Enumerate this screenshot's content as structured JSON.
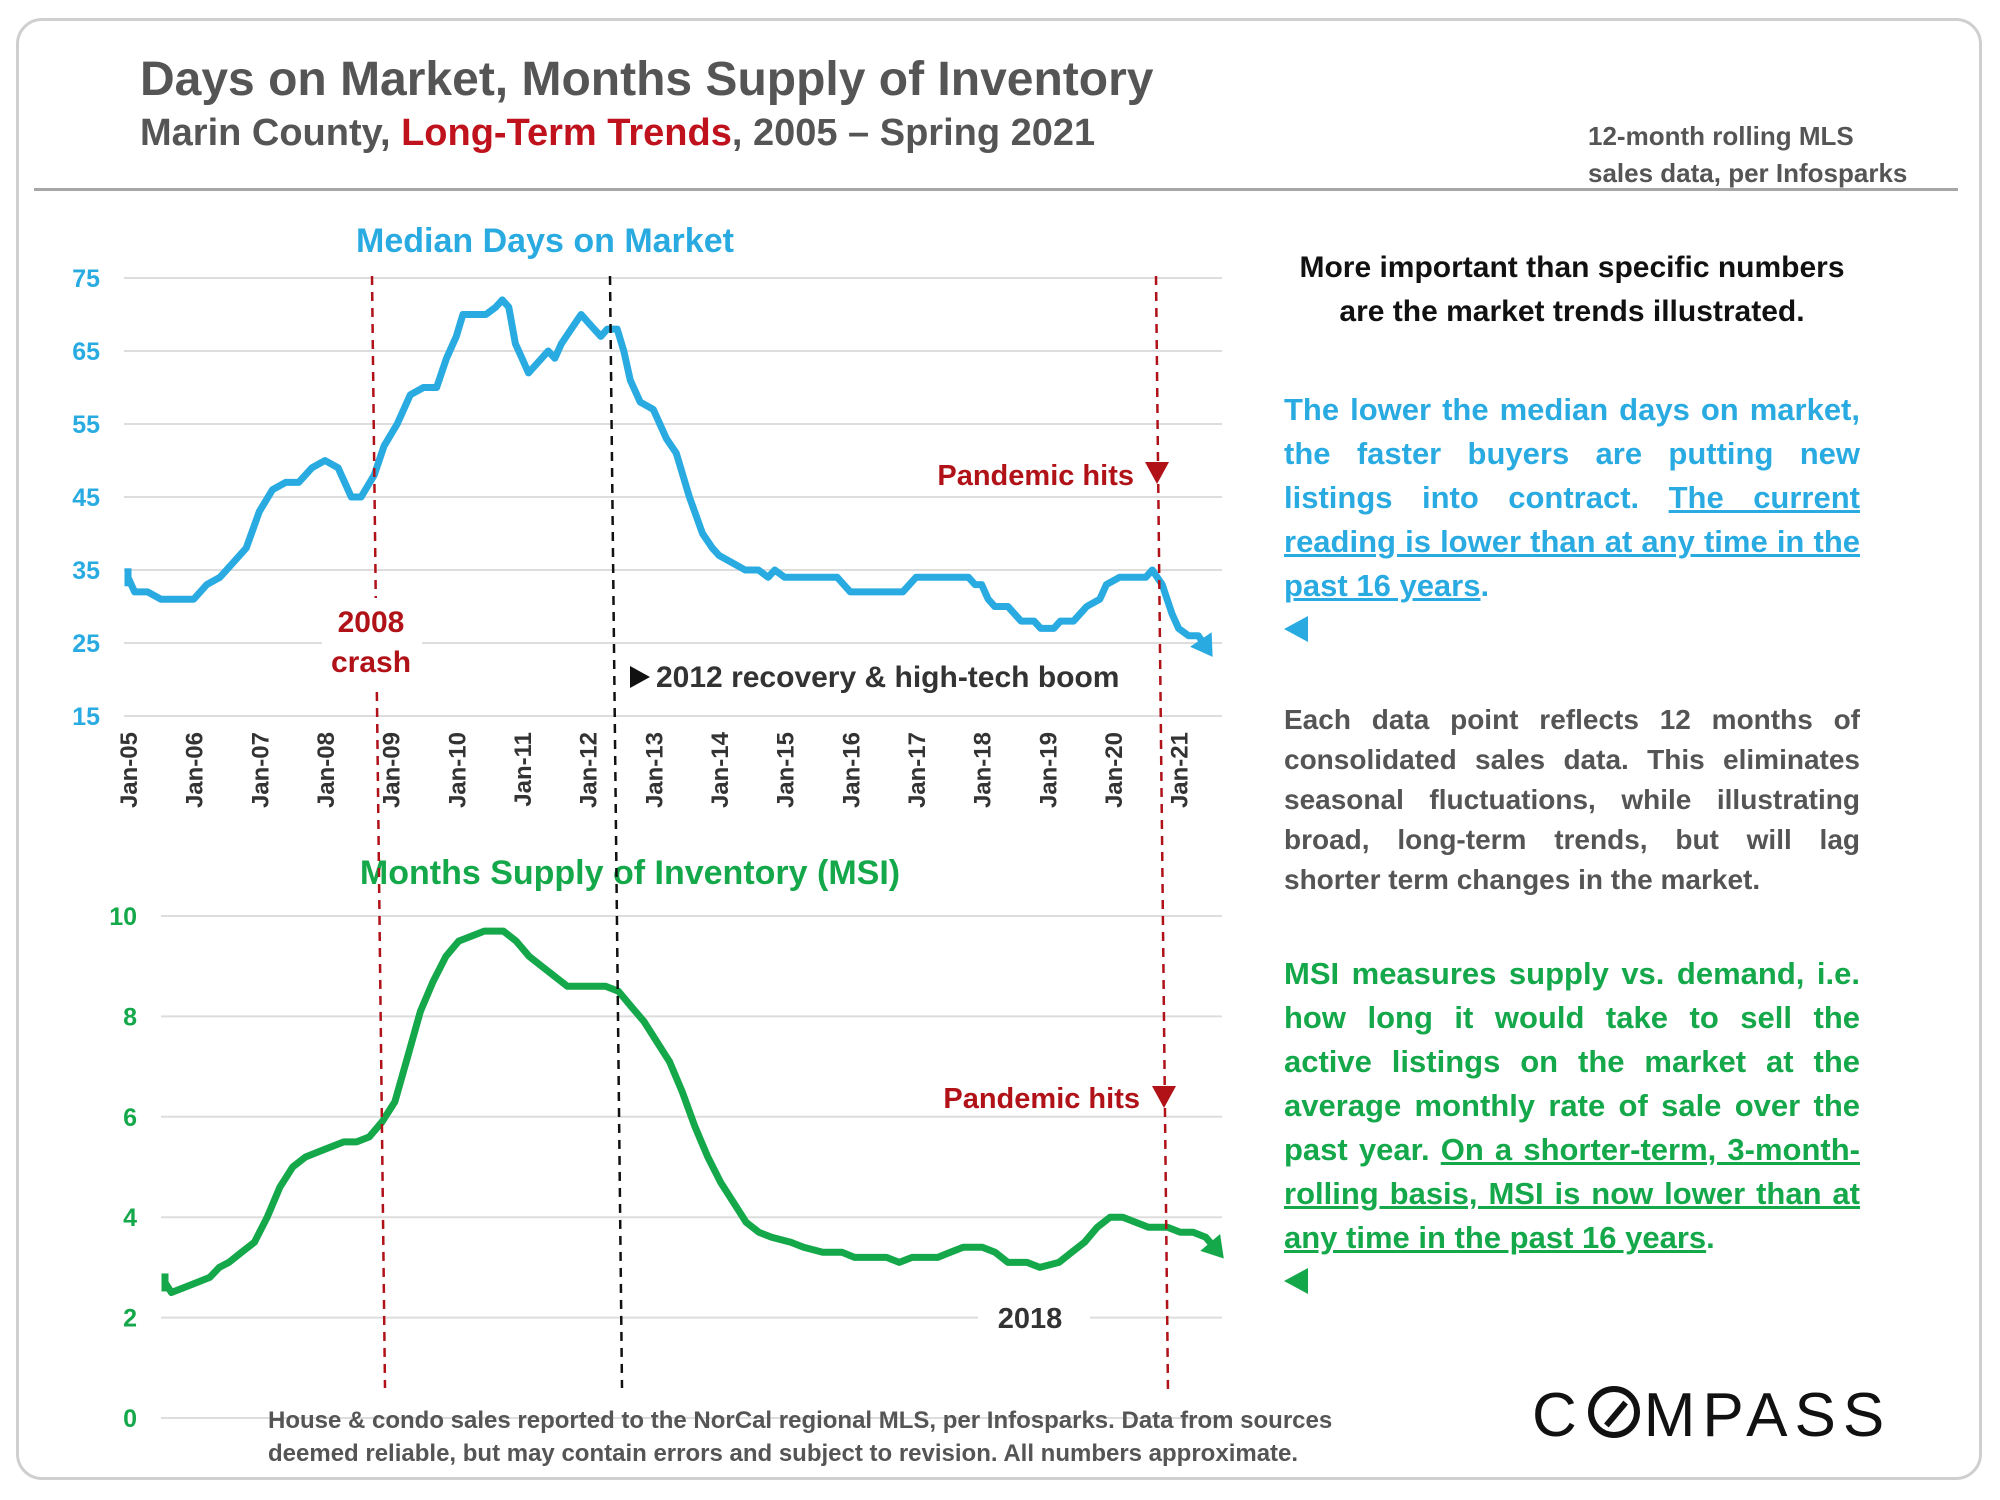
{
  "header": {
    "title": "Days on Market, Months Supply of Inventory",
    "subtitle_a": "Marin County, ",
    "subtitle_b": "Long-Term Trends",
    "subtitle_c": ", 2005 – Spring 2021",
    "source_line1": "12-month rolling MLS",
    "source_line2": "sales data, per Infosparks"
  },
  "colors": {
    "dom": "#29abe2",
    "msi": "#14a84a",
    "annotation_red": "#b01218",
    "annotation_black": "#111111",
    "grid": "#dddddd"
  },
  "panel": {
    "p1": "More important than specific numbers are the market trends illustrated.",
    "p2_plain": "The lower the median days on market, the faster buyers are putting new listings into contract. ",
    "p2_underlined": "The current reading is lower than at any time in the past 16 years",
    "p2_end": ".",
    "p3": "Each data point reflects 12 months of consolidated sales data. This eliminates seasonal fluctuations, while illustrating broad, long-term trends, but will lag shorter term changes in the market.",
    "p4_plain": "MSI measures supply vs. demand, i.e. how long it would take to sell the active listings on the market at the average monthly rate of sale over the past year. ",
    "p4_underlined": "On a shorter-term, 3-month-rolling basis, MSI is now lower than at any time in the past 16 years",
    "p4_end": "."
  },
  "footnote": {
    "line1": "House & condo sales reported to the NorCal regional MLS, per Infosparks. Data from sources",
    "line2": "deemed reliable, but may contain errors and subject to revision. All numbers approximate."
  },
  "logo": {
    "before": "C",
    "after": "MPASS"
  },
  "chart_data": [
    {
      "type": "line",
      "title": "Median Days on Market",
      "x_tick_labels": [
        "Jan-05",
        "Jan-06",
        "Jan-07",
        "Jan-08",
        "Jan-09",
        "Jan-10",
        "Jan-11",
        "Jan-12",
        "Jan-13",
        "Jan-14",
        "Jan-15",
        "Jan-16",
        "Jan-17",
        "Jan-18",
        "Jan-19",
        "Jan-20",
        "Jan-21"
      ],
      "ylim": [
        15,
        75
      ],
      "yticks": [
        15,
        25,
        35,
        45,
        55,
        65,
        75
      ],
      "grid": true,
      "series": [
        {
          "points": [
            [
              2005.0,
              34
            ],
            [
              2005.1,
              32
            ],
            [
              2005.3,
              32
            ],
            [
              2005.5,
              31
            ],
            [
              2005.8,
              31
            ],
            [
              2006.0,
              31
            ],
            [
              2006.2,
              33
            ],
            [
              2006.4,
              34
            ],
            [
              2006.6,
              36
            ],
            [
              2006.8,
              38
            ],
            [
              2007.0,
              43
            ],
            [
              2007.2,
              46
            ],
            [
              2007.4,
              47
            ],
            [
              2007.6,
              47
            ],
            [
              2007.8,
              49
            ],
            [
              2008.0,
              50
            ],
            [
              2008.2,
              49
            ],
            [
              2008.4,
              45
            ],
            [
              2008.55,
              45
            ],
            [
              2008.75,
              48
            ],
            [
              2008.9,
              52
            ],
            [
              2009.1,
              55
            ],
            [
              2009.3,
              59
            ],
            [
              2009.5,
              60
            ],
            [
              2009.7,
              60
            ],
            [
              2009.85,
              64
            ],
            [
              2010.0,
              67
            ],
            [
              2010.1,
              70
            ],
            [
              2010.3,
              70
            ],
            [
              2010.45,
              70
            ],
            [
              2010.6,
              71
            ],
            [
              2010.7,
              72
            ],
            [
              2010.8,
              71
            ],
            [
              2010.9,
              66
            ],
            [
              2011.0,
              64
            ],
            [
              2011.1,
              62
            ],
            [
              2011.3,
              64
            ],
            [
              2011.4,
              65
            ],
            [
              2011.5,
              64
            ],
            [
              2011.6,
              66
            ],
            [
              2011.75,
              68
            ],
            [
              2011.9,
              70
            ],
            [
              2012.0,
              69
            ],
            [
              2012.1,
              68
            ],
            [
              2012.2,
              67
            ],
            [
              2012.3,
              68
            ],
            [
              2012.45,
              68
            ],
            [
              2012.55,
              65
            ],
            [
              2012.65,
              61
            ],
            [
              2012.8,
              58
            ],
            [
              2013.0,
              57
            ],
            [
              2013.2,
              53
            ],
            [
              2013.35,
              51
            ],
            [
              2013.55,
              45
            ],
            [
              2013.75,
              40
            ],
            [
              2013.9,
              38
            ],
            [
              2014.0,
              37
            ],
            [
              2014.2,
              36
            ],
            [
              2014.4,
              35
            ],
            [
              2014.6,
              35
            ],
            [
              2014.75,
              34
            ],
            [
              2014.85,
              35
            ],
            [
              2015.0,
              34
            ],
            [
              2015.3,
              34
            ],
            [
              2015.6,
              34
            ],
            [
              2015.8,
              34
            ],
            [
              2016.0,
              32
            ],
            [
              2016.3,
              32
            ],
            [
              2016.6,
              32
            ],
            [
              2016.8,
              32
            ],
            [
              2016.9,
              33
            ],
            [
              2017.0,
              34
            ],
            [
              2017.3,
              34
            ],
            [
              2017.6,
              34
            ],
            [
              2017.8,
              34
            ],
            [
              2017.9,
              33
            ],
            [
              2018.0,
              33
            ],
            [
              2018.1,
              31
            ],
            [
              2018.2,
              30
            ],
            [
              2018.4,
              30
            ],
            [
              2018.6,
              28
            ],
            [
              2018.8,
              28
            ],
            [
              2018.9,
              27
            ],
            [
              2019.1,
              27
            ],
            [
              2019.2,
              28
            ],
            [
              2019.4,
              28
            ],
            [
              2019.6,
              30
            ],
            [
              2019.8,
              31
            ],
            [
              2019.9,
              33
            ],
            [
              2020.1,
              34
            ],
            [
              2020.3,
              34
            ],
            [
              2020.5,
              34
            ],
            [
              2020.6,
              35
            ],
            [
              2020.75,
              33
            ],
            [
              2020.9,
              29
            ],
            [
              2021.0,
              27
            ],
            [
              2021.15,
              26
            ],
            [
              2021.3,
              26
            ],
            [
              2021.45,
              24
            ]
          ]
        }
      ],
      "annotations": {
        "crash_label_1": "2008",
        "crash_label_2": "crash",
        "recovery_label": "2012 recovery & high-tech boom",
        "pandemic_label": "Pandemic hits"
      }
    },
    {
      "type": "line",
      "title": "Months Supply of Inventory (MSI)",
      "ylim": [
        0,
        10
      ],
      "yticks": [
        0,
        2,
        4,
        6,
        8,
        10
      ],
      "grid": true,
      "series": [
        {
          "points": [
            [
              2005.0,
              2.7
            ],
            [
              2005.1,
              2.5
            ],
            [
              2005.3,
              2.6
            ],
            [
              2005.5,
              2.7
            ],
            [
              2005.7,
              2.8
            ],
            [
              2005.85,
              3.0
            ],
            [
              2006.0,
              3.1
            ],
            [
              2006.2,
              3.3
            ],
            [
              2006.4,
              3.5
            ],
            [
              2006.6,
              4.0
            ],
            [
              2006.8,
              4.6
            ],
            [
              2007.0,
              5.0
            ],
            [
              2007.2,
              5.2
            ],
            [
              2007.4,
              5.3
            ],
            [
              2007.6,
              5.4
            ],
            [
              2007.8,
              5.5
            ],
            [
              2008.0,
              5.5
            ],
            [
              2008.2,
              5.6
            ],
            [
              2008.4,
              5.9
            ],
            [
              2008.6,
              6.3
            ],
            [
              2008.8,
              7.2
            ],
            [
              2009.0,
              8.1
            ],
            [
              2009.2,
              8.7
            ],
            [
              2009.4,
              9.2
            ],
            [
              2009.6,
              9.5
            ],
            [
              2009.8,
              9.6
            ],
            [
              2010.0,
              9.7
            ],
            [
              2010.3,
              9.7
            ],
            [
              2010.5,
              9.5
            ],
            [
              2010.7,
              9.2
            ],
            [
              2010.9,
              9.0
            ],
            [
              2011.1,
              8.8
            ],
            [
              2011.3,
              8.6
            ],
            [
              2011.6,
              8.6
            ],
            [
              2011.9,
              8.6
            ],
            [
              2012.1,
              8.5
            ],
            [
              2012.3,
              8.2
            ],
            [
              2012.5,
              7.9
            ],
            [
              2012.7,
              7.5
            ],
            [
              2012.9,
              7.1
            ],
            [
              2013.1,
              6.5
            ],
            [
              2013.3,
              5.8
            ],
            [
              2013.5,
              5.2
            ],
            [
              2013.7,
              4.7
            ],
            [
              2013.9,
              4.3
            ],
            [
              2014.1,
              3.9
            ],
            [
              2014.3,
              3.7
            ],
            [
              2014.5,
              3.6
            ],
            [
              2014.8,
              3.5
            ],
            [
              2015.0,
              3.4
            ],
            [
              2015.3,
              3.3
            ],
            [
              2015.6,
              3.3
            ],
            [
              2015.8,
              3.2
            ],
            [
              2016.0,
              3.2
            ],
            [
              2016.3,
              3.2
            ],
            [
              2016.5,
              3.1
            ],
            [
              2016.7,
              3.2
            ],
            [
              2016.9,
              3.2
            ],
            [
              2017.1,
              3.2
            ],
            [
              2017.3,
              3.3
            ],
            [
              2017.5,
              3.4
            ],
            [
              2017.8,
              3.4
            ],
            [
              2018.0,
              3.3
            ],
            [
              2018.2,
              3.1
            ],
            [
              2018.5,
              3.1
            ],
            [
              2018.7,
              3.0
            ],
            [
              2019.0,
              3.1
            ],
            [
              2019.2,
              3.3
            ],
            [
              2019.4,
              3.5
            ],
            [
              2019.6,
              3.8
            ],
            [
              2019.8,
              4.0
            ],
            [
              2020.0,
              4.0
            ],
            [
              2020.2,
              3.9
            ],
            [
              2020.4,
              3.8
            ],
            [
              2020.7,
              3.8
            ],
            [
              2020.9,
              3.7
            ],
            [
              2021.1,
              3.7
            ],
            [
              2021.3,
              3.6
            ],
            [
              2021.5,
              3.3
            ]
          ]
        }
      ],
      "annotations": {
        "pandemic_label": "Pandemic hits",
        "year_label": "2018"
      }
    }
  ]
}
